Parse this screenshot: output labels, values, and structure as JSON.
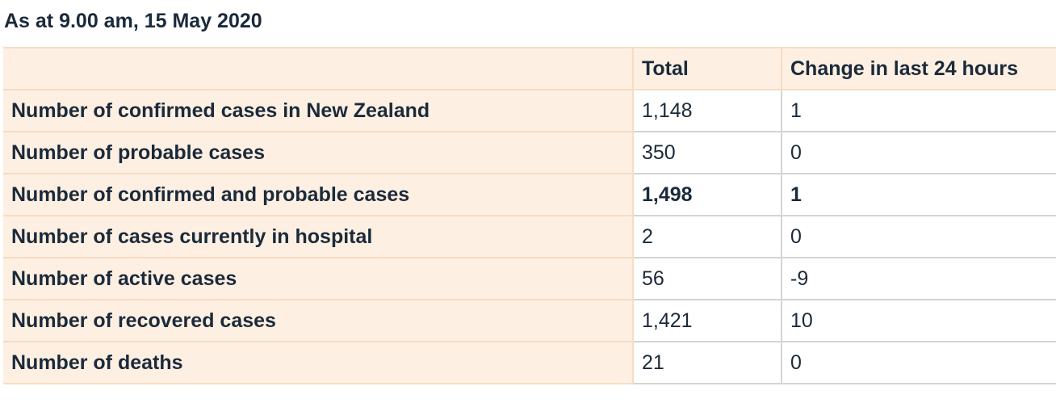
{
  "caption": "As at 9.00 am, 15 May 2020",
  "table": {
    "header": [
      "",
      "Total",
      "Change in last 24 hours"
    ],
    "rows": [
      [
        "Number of confirmed cases in New Zealand",
        "1,148",
        "1"
      ],
      [
        "Number of probable cases",
        "350",
        "0"
      ],
      [
        "Number of confirmed and probable cases",
        "1,498",
        "1"
      ],
      [
        "Number of cases currently in hospital",
        "2",
        "0"
      ],
      [
        "Number of active cases",
        "56",
        "-9"
      ],
      [
        "Number of recovered cases",
        "1,421",
        "10"
      ],
      [
        "Number of deaths",
        "21",
        "0"
      ]
    ]
  }
}
